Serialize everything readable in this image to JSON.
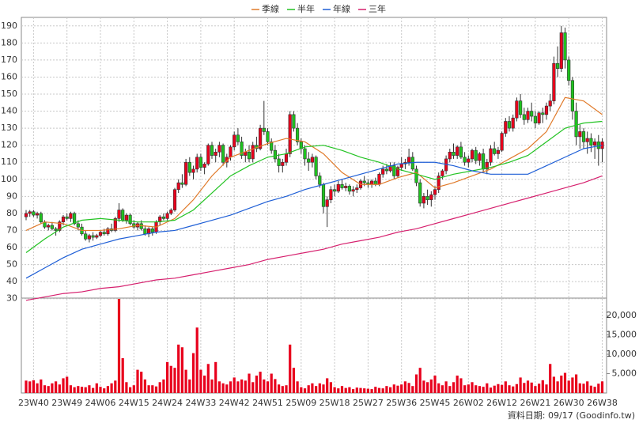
{
  "chart_data": {
    "type": "candlestick",
    "legend": [
      "季線",
      "半年",
      "年線",
      "三年"
    ],
    "footer": "資料日期: 09/17  (Goodinfo.tw)",
    "categories": [
      null,
      null,
      "23W40",
      null,
      null,
      null,
      null,
      null,
      null,
      null,
      null,
      "23W49",
      null,
      null,
      null,
      null,
      null,
      null,
      null,
      null,
      "24W06",
      null,
      null,
      null,
      null,
      null,
      null,
      null,
      null,
      "24W15",
      null,
      null,
      null,
      null,
      null,
      null,
      null,
      null,
      "24W24",
      null,
      null,
      null,
      null,
      null,
      null,
      null,
      null,
      "24W33",
      null,
      null,
      null,
      null,
      null,
      null,
      null,
      null,
      "24W42",
      null,
      null,
      null,
      null,
      null,
      null,
      null,
      null,
      "24W51",
      null,
      null,
      null,
      null,
      null,
      null,
      null,
      null,
      "25W09",
      null,
      null,
      null,
      null,
      null,
      null,
      null,
      null,
      "25W18",
      null,
      null,
      null,
      null,
      null,
      null,
      null,
      null,
      "25W27",
      null,
      null,
      null,
      null,
      null,
      null,
      null,
      null,
      "25W36",
      null,
      null,
      null,
      null,
      null,
      null,
      null,
      null,
      "25W45",
      null,
      null,
      null,
      null,
      null,
      null,
      null,
      null,
      "26W02",
      null,
      null,
      null,
      null,
      null,
      null,
      null,
      null,
      "26W12",
      null,
      null,
      null,
      null,
      null,
      null,
      null,
      null,
      "26W21",
      null,
      null,
      null,
      null,
      null,
      null,
      null,
      null,
      "26W30",
      null,
      null,
      null,
      null,
      null,
      null,
      null,
      null,
      "26W38"
    ],
    "candles": [
      [
        78,
        82,
        76,
        80
      ],
      [
        80,
        82,
        78,
        81
      ],
      [
        81,
        82,
        78,
        79
      ],
      [
        79,
        81,
        77,
        80
      ],
      [
        80,
        81,
        74,
        75
      ],
      [
        75,
        76,
        71,
        72
      ],
      [
        72,
        74,
        70,
        73
      ],
      [
        73,
        75,
        70,
        71
      ],
      [
        71,
        72,
        67,
        70
      ],
      [
        70,
        76,
        69,
        75
      ],
      [
        75,
        79,
        73,
        78
      ],
      [
        78,
        80,
        76,
        77
      ],
      [
        77,
        81,
        75,
        80
      ],
      [
        80,
        81,
        73,
        74
      ],
      [
        74,
        76,
        70,
        72
      ],
      [
        72,
        74,
        67,
        68
      ],
      [
        68,
        70,
        64,
        65
      ],
      [
        65,
        68,
        63,
        67
      ],
      [
        67,
        69,
        64,
        66
      ],
      [
        66,
        68,
        65,
        67
      ],
      [
        67,
        70,
        66,
        69
      ],
      [
        69,
        71,
        67,
        68
      ],
      [
        68,
        72,
        67,
        71
      ],
      [
        71,
        74,
        69,
        70
      ],
      [
        70,
        78,
        69,
        77
      ],
      [
        77,
        86,
        75,
        82
      ],
      [
        82,
        83,
        75,
        76
      ],
      [
        76,
        80,
        74,
        79
      ],
      [
        79,
        80,
        73,
        74
      ],
      [
        74,
        76,
        71,
        72
      ],
      [
        72,
        75,
        70,
        74
      ],
      [
        74,
        76,
        70,
        71
      ],
      [
        71,
        73,
        67,
        68
      ],
      [
        68,
        72,
        66,
        71
      ],
      [
        71,
        72,
        67,
        69
      ],
      [
        69,
        76,
        68,
        75
      ],
      [
        75,
        79,
        73,
        78
      ],
      [
        78,
        80,
        76,
        77
      ],
      [
        77,
        81,
        76,
        80
      ],
      [
        80,
        83,
        79,
        82
      ],
      [
        82,
        95,
        81,
        94
      ],
      [
        94,
        100,
        92,
        98
      ],
      [
        98,
        103,
        95,
        97
      ],
      [
        97,
        112,
        96,
        110
      ],
      [
        110,
        113,
        102,
        104
      ],
      [
        104,
        108,
        100,
        106
      ],
      [
        106,
        115,
        104,
        113
      ],
      [
        113,
        115,
        105,
        107
      ],
      [
        107,
        110,
        103,
        109
      ],
      [
        109,
        121,
        108,
        120
      ],
      [
        120,
        122,
        112,
        114
      ],
      [
        114,
        118,
        110,
        116
      ],
      [
        116,
        122,
        113,
        120
      ],
      [
        120,
        121,
        108,
        110
      ],
      [
        110,
        115,
        107,
        113
      ],
      [
        113,
        120,
        111,
        119
      ],
      [
        119,
        128,
        117,
        126
      ],
      [
        126,
        130,
        120,
        122
      ],
      [
        122,
        125,
        112,
        114
      ],
      [
        114,
        118,
        110,
        116
      ],
      [
        116,
        120,
        110,
        112
      ],
      [
        112,
        122,
        110,
        120
      ],
      [
        120,
        125,
        116,
        118
      ],
      [
        118,
        132,
        117,
        130
      ],
      [
        130,
        146,
        126,
        128
      ],
      [
        128,
        130,
        120,
        122
      ],
      [
        122,
        124,
        115,
        117
      ],
      [
        117,
        120,
        110,
        112
      ],
      [
        112,
        115,
        104,
        108
      ],
      [
        108,
        112,
        104,
        110
      ],
      [
        110,
        118,
        108,
        115
      ],
      [
        115,
        140,
        113,
        138
      ],
      [
        138,
        140,
        128,
        130
      ],
      [
        130,
        133,
        120,
        122
      ],
      [
        122,
        124,
        115,
        118
      ],
      [
        118,
        120,
        108,
        112
      ],
      [
        112,
        116,
        105,
        110
      ],
      [
        110,
        115,
        107,
        113
      ],
      [
        113,
        114,
        100,
        102
      ],
      [
        102,
        104,
        95,
        97
      ],
      [
        97,
        98,
        80,
        84
      ],
      [
        84,
        90,
        72,
        88
      ],
      [
        88,
        96,
        86,
        94
      ],
      [
        94,
        97,
        90,
        93
      ],
      [
        93,
        99,
        92,
        97
      ],
      [
        97,
        100,
        94,
        95
      ],
      [
        95,
        98,
        93,
        96
      ],
      [
        96,
        97,
        91,
        93
      ],
      [
        93,
        96,
        90,
        94
      ],
      [
        94,
        97,
        92,
        95
      ],
      [
        95,
        100,
        94,
        99
      ],
      [
        99,
        102,
        96,
        98
      ],
      [
        98,
        100,
        95,
        97
      ],
      [
        97,
        100,
        95,
        99
      ],
      [
        99,
        101,
        96,
        97
      ],
      [
        97,
        104,
        96,
        103
      ],
      [
        103,
        108,
        101,
        106
      ],
      [
        106,
        109,
        103,
        105
      ],
      [
        105,
        110,
        104,
        108
      ],
      [
        108,
        110,
        100,
        102
      ],
      [
        102,
        108,
        101,
        107
      ],
      [
        107,
        113,
        105,
        109
      ],
      [
        109,
        112,
        106,
        110
      ],
      [
        110,
        118,
        108,
        113
      ],
      [
        113,
        116,
        105,
        106
      ],
      [
        106,
        108,
        96,
        98
      ],
      [
        98,
        100,
        84,
        86
      ],
      [
        86,
        92,
        83,
        90
      ],
      [
        90,
        94,
        85,
        88
      ],
      [
        88,
        93,
        84,
        91
      ],
      [
        91,
        96,
        88,
        94
      ],
      [
        94,
        104,
        92,
        102
      ],
      [
        102,
        106,
        100,
        105
      ],
      [
        105,
        114,
        103,
        112
      ],
      [
        112,
        118,
        110,
        116
      ],
      [
        116,
        121,
        112,
        114
      ],
      [
        114,
        120,
        112,
        119
      ],
      [
        119,
        122,
        112,
        113
      ],
      [
        113,
        116,
        108,
        110
      ],
      [
        110,
        114,
        107,
        112
      ],
      [
        112,
        118,
        110,
        117
      ],
      [
        117,
        119,
        109,
        111
      ],
      [
        111,
        116,
        108,
        115
      ],
      [
        115,
        118,
        104,
        106
      ],
      [
        106,
        112,
        103,
        110
      ],
      [
        110,
        120,
        108,
        118
      ],
      [
        118,
        122,
        114,
        115
      ],
      [
        115,
        119,
        112,
        117
      ],
      [
        117,
        128,
        116,
        127
      ],
      [
        127,
        136,
        125,
        134
      ],
      [
        134,
        137,
        128,
        130
      ],
      [
        130,
        138,
        128,
        136
      ],
      [
        136,
        148,
        134,
        146
      ],
      [
        146,
        150,
        136,
        138
      ],
      [
        138,
        142,
        132,
        135
      ],
      [
        135,
        142,
        133,
        140
      ],
      [
        140,
        145,
        134,
        137
      ],
      [
        137,
        140,
        130,
        133
      ],
      [
        133,
        140,
        132,
        139
      ],
      [
        139,
        142,
        133,
        138
      ],
      [
        138,
        145,
        135,
        143
      ],
      [
        143,
        150,
        140,
        146
      ],
      [
        146,
        172,
        144,
        168
      ],
      [
        168,
        178,
        160,
        165
      ],
      [
        165,
        190,
        163,
        186
      ],
      [
        186,
        189,
        165,
        170
      ],
      [
        170,
        172,
        155,
        158
      ],
      [
        158,
        160,
        135,
        140
      ],
      [
        140,
        145,
        120,
        125
      ],
      [
        125,
        132,
        118,
        128
      ],
      [
        128,
        130,
        118,
        122
      ],
      [
        122,
        128,
        115,
        124
      ],
      [
        124,
        127,
        116,
        120
      ],
      [
        120,
        124,
        112,
        122
      ],
      [
        122,
        126,
        108,
        118
      ],
      [
        118,
        124,
        110,
        122
      ]
    ],
    "up_color": "#e8001c",
    "down_color": "#1fc21f",
    "series": [
      {
        "name": "季線",
        "color": "#e07a2a",
        "x": [
          0,
          5,
          10,
          15,
          20,
          25,
          30,
          35,
          40,
          45,
          50,
          55,
          60,
          65,
          70,
          75,
          80,
          85,
          90,
          95,
          100,
          105,
          110,
          115,
          120,
          125,
          130,
          135,
          140,
          145,
          150,
          155
        ],
        "values": [
          70,
          75,
          74,
          70,
          70,
          71,
          73,
          72,
          77,
          88,
          102,
          113,
          117,
          121,
          124,
          122,
          115,
          104,
          97,
          97,
          101,
          104,
          95,
          98,
          102,
          106,
          112,
          118,
          128,
          148,
          146,
          138
        ]
      },
      {
        "name": "半年",
        "color": "#22c322",
        "x": [
          0,
          5,
          10,
          15,
          20,
          25,
          30,
          35,
          40,
          45,
          50,
          55,
          60,
          65,
          70,
          75,
          80,
          85,
          90,
          95,
          100,
          105,
          110,
          115,
          120,
          125,
          130,
          135,
          140,
          145,
          150,
          155
        ],
        "values": [
          57,
          65,
          72,
          76,
          77,
          76,
          75,
          75,
          76,
          82,
          92,
          102,
          108,
          113,
          115,
          119,
          120,
          117,
          113,
          110,
          106,
          103,
          100,
          103,
          105,
          107,
          110,
          114,
          122,
          130,
          133,
          134
        ]
      },
      {
        "name": "年線",
        "color": "#1f5fd6",
        "x": [
          0,
          5,
          10,
          15,
          20,
          25,
          30,
          35,
          40,
          45,
          50,
          55,
          60,
          65,
          70,
          75,
          80,
          85,
          90,
          95,
          100,
          105,
          110,
          115,
          120,
          125,
          130,
          135,
          140,
          145,
          150,
          155
        ],
        "values": [
          42,
          48,
          54,
          59,
          62,
          65,
          67,
          69,
          70,
          73,
          76,
          79,
          83,
          87,
          90,
          94,
          97,
          100,
          103,
          106,
          109,
          110,
          110,
          108,
          105,
          103,
          103,
          103,
          108,
          113,
          118,
          120
        ]
      },
      {
        "name": "三年",
        "color": "#d6206e",
        "x": [
          0,
          5,
          10,
          15,
          20,
          25,
          30,
          35,
          40,
          45,
          50,
          55,
          60,
          65,
          70,
          75,
          80,
          85,
          90,
          95,
          100,
          105,
          110,
          115,
          120,
          125,
          130,
          135,
          140,
          145,
          150,
          155
        ],
        "values": [
          29,
          31,
          33,
          34,
          36,
          37,
          39,
          41,
          42,
          44,
          46,
          48,
          50,
          53,
          55,
          57,
          59,
          62,
          64,
          66,
          69,
          71,
          74,
          77,
          80,
          83,
          86,
          89,
          92,
          95,
          98,
          102
        ]
      }
    ],
    "ylim": [
      28,
      195
    ],
    "yticks": [
      30,
      40,
      50,
      60,
      70,
      80,
      90,
      100,
      110,
      120,
      130,
      140,
      150,
      160,
      170,
      180,
      190
    ],
    "volume": {
      "color": "#e8001c",
      "ylim": [
        0,
        24500
      ],
      "yticks": [
        {
          "value": 5000,
          "label": "5,000"
        },
        {
          "value": 10000,
          "label": "10,000"
        },
        {
          "value": 15000,
          "label": "15,000"
        },
        {
          "value": 20000,
          "label": "20,000"
        }
      ],
      "values": [
        3200,
        3000,
        3300,
        2500,
        3500,
        2000,
        1800,
        2500,
        3000,
        2200,
        3800,
        4200,
        2000,
        1500,
        1800,
        1600,
        1500,
        2000,
        1300,
        2500,
        1600,
        1200,
        1800,
        2500,
        3200,
        24300,
        9000,
        2800,
        1500,
        2000,
        6000,
        5500,
        3500,
        2000,
        2000,
        1700,
        2800,
        3500,
        8000,
        7000,
        6500,
        12500,
        11800,
        6000,
        3500,
        10300,
        16900,
        6000,
        4500,
        7500,
        3500,
        8000,
        3000,
        2500,
        2200,
        3000,
        4000,
        3000,
        3500,
        3200,
        5000,
        2800,
        4500,
        5500,
        3500,
        3000,
        5000,
        3600,
        2200,
        1800,
        2000,
        12500,
        6500,
        3000,
        1500,
        1200,
        2000,
        2500,
        1800,
        2500,
        2200,
        3800,
        2800,
        1500,
        1200,
        1800,
        1300,
        1500,
        1000,
        1400,
        1300,
        1200,
        1100,
        1000,
        1600,
        1300,
        1200,
        1800,
        1500,
        2200,
        1900,
        2200,
        3000,
        2600,
        1800,
        4800,
        6500,
        3200,
        2800,
        3500,
        4500,
        2500,
        2000,
        3000,
        1800,
        2800,
        4500,
        3800,
        2000,
        2200,
        2800,
        2000,
        1800,
        1600,
        2500,
        1400,
        1900,
        2300,
        2100,
        3000,
        2000,
        1700,
        2300,
        4000,
        2600,
        3200,
        2700,
        1800,
        2400,
        3300,
        2200,
        7500,
        4200,
        3000,
        4500,
        5200,
        3200,
        4000,
        4800,
        2500,
        2400,
        3000,
        1900,
        1600,
        2400,
        3000
      ]
    },
    "grid": true
  }
}
